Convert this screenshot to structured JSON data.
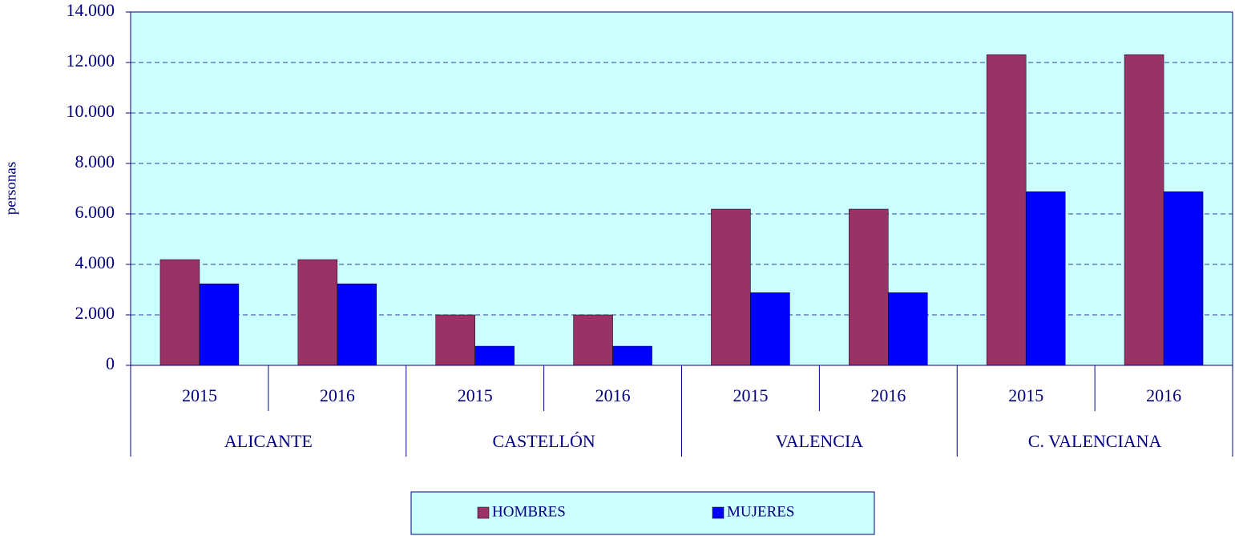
{
  "chart_data": {
    "type": "bar",
    "y_label": "personas",
    "categories": [
      "2015",
      "2016",
      "2015",
      "2016",
      "2015",
      "2016",
      "2015",
      "2016"
    ],
    "groups": [
      "ALICANTE",
      "CASTELLÓN",
      "VALENCIA",
      "C. VALENCIANA"
    ],
    "series": [
      {
        "name": "HOMBRES",
        "color": "#993366",
        "values": [
          4190,
          4190,
          2000,
          2000,
          6190,
          6190,
          12310,
          12310
        ]
      },
      {
        "name": "MUJERES",
        "color": "#0000ff",
        "values": [
          3230,
          3230,
          760,
          760,
          2880,
          2880,
          6880,
          6880
        ]
      }
    ],
    "ylim": [
      0,
      14000
    ],
    "yticks": [
      0,
      {
        "value": 2000,
        "label": "2.000"
      },
      {
        "value": 4000,
        "label": "4.000"
      },
      {
        "value": 6000,
        "label": "6.000"
      },
      {
        "value": 8000,
        "label": "8.000"
      },
      {
        "value": 10000,
        "label": "10.000"
      },
      {
        "value": 12000,
        "label": "12.000"
      },
      {
        "value": 14000,
        "label": "14.000"
      }
    ],
    "grid": true,
    "plot_background": "#ccffff",
    "legend": "bottom"
  }
}
